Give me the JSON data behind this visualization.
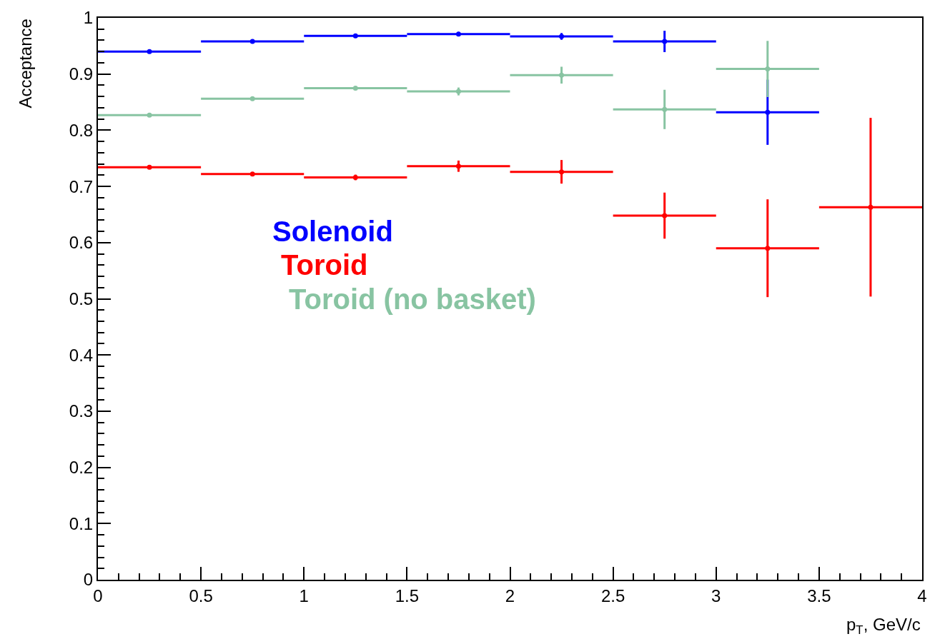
{
  "chart_data": {
    "type": "scatter",
    "xlabel": "p$_{T}$, GeV/c",
    "ylabel": "Acceptance",
    "marker": "circle",
    "x": [
      0.25,
      0.75,
      1.25,
      1.75,
      2.25,
      2.75,
      3.25,
      3.75
    ],
    "series": [
      {
        "name": "Solenoid",
        "color": "#0000ff",
        "values": [
          0.94,
          0.958,
          0.968,
          0.971,
          0.967,
          0.958,
          0.832,
          null
        ],
        "xerrors": [
          0.25,
          0.25,
          0.25,
          0.25,
          0.25,
          0.25,
          0.25,
          null
        ],
        "errors": [
          0.002,
          0.002,
          0.002,
          0.004,
          0.006,
          0.019,
          0.058,
          null
        ]
      },
      {
        "name": "Toroid",
        "color": "#ff0000",
        "values": [
          0.734,
          0.722,
          0.716,
          0.736,
          0.726,
          0.648,
          0.59,
          0.663
        ],
        "xerrors": [
          0.25,
          0.25,
          0.25,
          0.25,
          0.25,
          0.25,
          0.25,
          0.25
        ],
        "errors": [
          0.002,
          0.002,
          0.005,
          0.01,
          0.021,
          0.041,
          0.087,
          0.159
        ]
      },
      {
        "name": "Toroid (no basket)",
        "color": "#88c4a2",
        "values": [
          0.827,
          0.856,
          0.875,
          0.869,
          0.898,
          0.837,
          0.909,
          null
        ],
        "xerrors": [
          0.25,
          0.25,
          0.25,
          0.25,
          0.25,
          0.25,
          0.25,
          null
        ],
        "errors": [
          0.002,
          0.002,
          0.003,
          0.007,
          0.015,
          0.035,
          0.05,
          null
        ]
      }
    ],
    "xlim": [
      0,
      4
    ],
    "xticks": [
      0,
      0.5,
      1,
      1.5,
      2,
      2.5,
      3,
      3.5,
      4
    ],
    "ylim": [
      0,
      1
    ],
    "yticks": [
      0,
      0.1,
      0.2,
      0.3,
      0.4,
      0.5,
      0.6,
      0.7,
      0.8,
      0.9,
      1
    ]
  }
}
